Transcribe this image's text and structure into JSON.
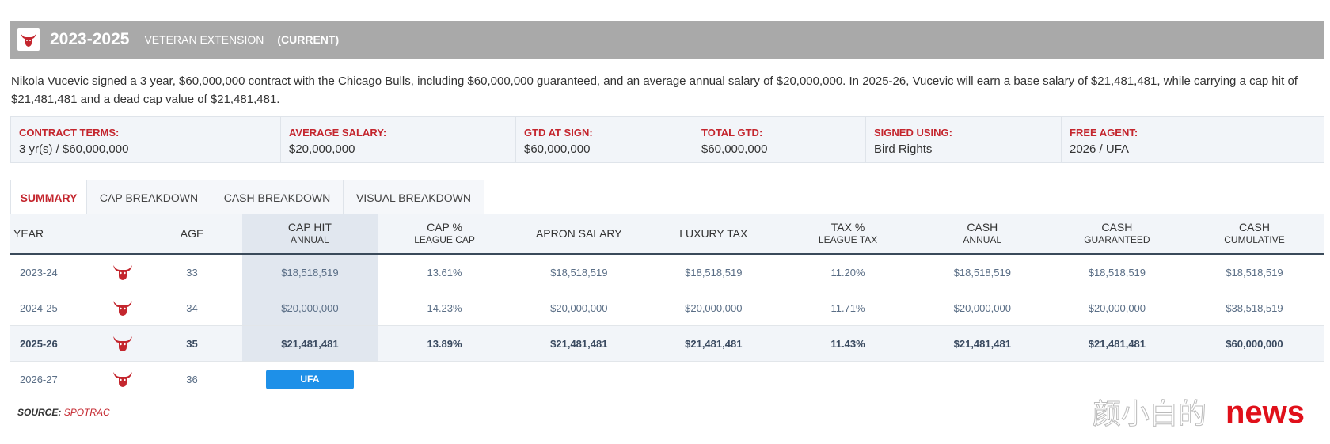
{
  "header": {
    "years": "2023-2025",
    "contract_type": "VETERAN EXTENSION",
    "status": "(CURRENT)"
  },
  "description": "Nikola Vucevic signed a 3 year, $60,000,000 contract with the Chicago Bulls, including $60,000,000 guaranteed, and an average annual salary of $20,000,000. In 2025-26, Vucevic will earn a base salary of $21,481,481, while carrying a cap hit of $21,481,481 and a dead cap value of $21,481,481.",
  "terms": [
    {
      "label": "CONTRACT TERMS:",
      "value": "3 yr(s) / $60,000,000"
    },
    {
      "label": "AVERAGE SALARY:",
      "value": "$20,000,000"
    },
    {
      "label": "GTD AT SIGN:",
      "value": "$60,000,000"
    },
    {
      "label": "TOTAL GTD:",
      "value": "$60,000,000"
    },
    {
      "label": "SIGNED USING:",
      "value": "Bird Rights"
    },
    {
      "label": "FREE AGENT:",
      "value": "2026 / UFA"
    }
  ],
  "tabs": [
    "SUMMARY",
    "CAP BREAKDOWN",
    "CASH BREAKDOWN",
    "VISUAL BREAKDOWN"
  ],
  "columns": {
    "year": "YEAR",
    "age": "AGE",
    "cap_hit": "CAP HIT",
    "cap_hit_sub": "ANNUAL",
    "cap_pct": "CAP %",
    "cap_pct_sub": "LEAGUE CAP",
    "apron": "APRON SALARY",
    "luxury": "LUXURY TAX",
    "tax_pct": "TAX %",
    "tax_pct_sub": "LEAGUE TAX",
    "cash_annual": "CASH",
    "cash_annual_sub": "ANNUAL",
    "cash_gtd": "CASH",
    "cash_gtd_sub": "GUARANTEED",
    "cash_cum": "CASH",
    "cash_cum_sub": "CUMULATIVE"
  },
  "rows": [
    {
      "year": "2023-24",
      "age": "33",
      "cap_hit": "$18,518,519",
      "cap_pct": "13.61%",
      "apron": "$18,518,519",
      "luxury": "$18,518,519",
      "tax_pct": "11.20%",
      "cash_annual": "$18,518,519",
      "cash_gtd": "$18,518,519",
      "cash_cum": "$18,518,519"
    },
    {
      "year": "2024-25",
      "age": "34",
      "cap_hit": "$20,000,000",
      "cap_pct": "14.23%",
      "apron": "$20,000,000",
      "luxury": "$20,000,000",
      "tax_pct": "11.71%",
      "cash_annual": "$20,000,000",
      "cash_gtd": "$20,000,000",
      "cash_cum": "$38,518,519"
    },
    {
      "year": "2025-26",
      "age": "35",
      "cap_hit": "$21,481,481",
      "cap_pct": "13.89%",
      "apron": "$21,481,481",
      "luxury": "$21,481,481",
      "tax_pct": "11.43%",
      "cash_annual": "$21,481,481",
      "cash_gtd": "$21,481,481",
      "cash_cum": "$60,000,000"
    },
    {
      "year": "2026-27",
      "age": "36",
      "ufa": "UFA"
    }
  ],
  "source": {
    "label": "SOURCE:",
    "name": "SPOTRAC"
  },
  "watermark": {
    "text": "颜小白的",
    "news": "news"
  },
  "colors": {
    "accent": "#c4262e",
    "header_bg": "#a9a9a9",
    "ufa_badge": "#1e90e8",
    "highlight_col": "#e1e7ef"
  },
  "icons": {
    "team_logo": "bulls-logo-icon"
  }
}
